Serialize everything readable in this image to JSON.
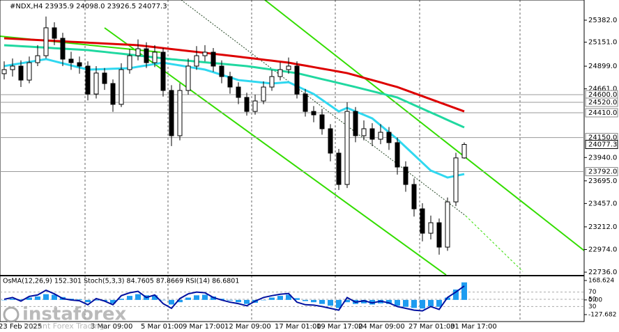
{
  "chart_data": [
    {
      "type": "candlestick",
      "title": "#NDX,H4  23935.9 24098.0 23926.5 24077.3",
      "categories": [
        null,
        "23 Feb 2025",
        null,
        null,
        null,
        null,
        null,
        null,
        null,
        null,
        null,
        null,
        "3 Mar 09:00",
        null,
        null,
        null,
        null,
        null,
        "5 Mar 01:00",
        null,
        null,
        null,
        null,
        "9 Mar 17:00",
        null,
        null,
        null,
        null,
        "12 Mar 09:00",
        null,
        null,
        null,
        null,
        null,
        "17 Mar 01:00",
        null,
        null,
        null,
        null,
        "19 Mar 17:00",
        null,
        null,
        null,
        null,
        "24 Mar 09:00",
        null,
        null,
        null,
        null,
        null,
        "27 Mar 01:00",
        null,
        null,
        null,
        null,
        "31 Mar 17:00"
      ],
      "open": [
        24820,
        24863,
        24900,
        24753,
        24936,
        25009,
        25302,
        25192,
        24973,
        24936,
        24900,
        24607,
        24827,
        24717,
        24498,
        24863,
        25009,
        25082,
        24936,
        25046,
        24644,
        24169,
        24644,
        24900,
        25009,
        25046,
        24900,
        24790,
        24680,
        24571,
        24424,
        24534,
        24680,
        24790,
        24863,
        24900,
        24607,
        24424,
        24388,
        24242,
        23986,
        23657,
        24424,
        24169,
        24242,
        24132,
        24205,
        24096,
        23840,
        23657,
        23401,
        23145,
        23255,
        22999,
        23474,
        23935.9
      ],
      "high": [
        24950,
        24980,
        24960,
        25000,
        25120,
        25420,
        25360,
        25250,
        25050,
        25000,
        24950,
        24900,
        24880,
        24760,
        24930,
        25080,
        25180,
        25150,
        25120,
        25090,
        24700,
        24720,
        24980,
        25110,
        25120,
        25090,
        24960,
        24840,
        24730,
        24620,
        24600,
        24740,
        24860,
        24940,
        24990,
        24950,
        24660,
        24480,
        24450,
        24290,
        24030,
        24520,
        24470,
        24330,
        24300,
        24290,
        24260,
        24150,
        23900,
        23720,
        23460,
        23330,
        23300,
        23520,
        23990,
        24098.0
      ],
      "low": [
        24760,
        24790,
        24680,
        24720,
        24900,
        24980,
        25120,
        24900,
        24860,
        24820,
        24540,
        24560,
        24650,
        24420,
        24470,
        24820,
        24960,
        24880,
        24890,
        24580,
        24060,
        24120,
        24600,
        24860,
        24950,
        24840,
        24720,
        24610,
        24500,
        24380,
        24390,
        24500,
        24640,
        24750,
        24820,
        24560,
        24370,
        24310,
        24180,
        23900,
        23600,
        23620,
        24100,
        24120,
        24060,
        24080,
        24020,
        23760,
        23580,
        23320,
        23060,
        23080,
        22920,
        22960,
        23430,
        23926.5
      ],
      "close": [
        24863,
        24900,
        24753,
        24936,
        25009,
        25302,
        25192,
        24973,
        24936,
        24900,
        24607,
        24827,
        24717,
        24498,
        24863,
        25009,
        25082,
        24936,
        25046,
        24644,
        24169,
        24644,
        24900,
        25009,
        25046,
        24900,
        24790,
        24680,
        24571,
        24424,
        24534,
        24680,
        24790,
        24863,
        24900,
        24607,
        24424,
        24388,
        24242,
        23986,
        23657,
        24424,
        24169,
        24242,
        24132,
        24205,
        24096,
        23840,
        23657,
        23401,
        23145,
        23255,
        22999,
        23474,
        23935.9,
        24077.3
      ],
      "series": [
        {
          "color": "#dd0000",
          "values": [
            25192,
            25187,
            25183,
            25178,
            25174,
            25169,
            25165,
            25160,
            25155,
            25151,
            25146,
            25142,
            25137,
            25133,
            25128,
            25124,
            25119,
            25109,
            25099,
            25089,
            25079,
            25069,
            25059,
            25049,
            25039,
            25029,
            25019,
            25009,
            24999,
            24988,
            24978,
            24967,
            24957,
            24946,
            24936,
            24920,
            24905,
            24889,
            24873,
            24858,
            24842,
            24826,
            24802,
            24777,
            24753,
            24729,
            24704,
            24680,
            24648,
            24616,
            24584,
            24552,
            24520,
            24488,
            24456,
            24424
          ]
        },
        {
          "color": "#20d8a0",
          "values": [
            25119,
            25114,
            25109,
            25104,
            25099,
            25094,
            25088,
            25083,
            25078,
            25073,
            25068,
            25058,
            25049,
            25039,
            25030,
            25020,
            25011,
            25001,
            24991,
            24982,
            24972,
            24964,
            24956,
            24948,
            24940,
            24932,
            24924,
            24916,
            24908,
            24900,
            24888,
            24875,
            24863,
            24851,
            24838,
            24826,
            24805,
            24784,
            24763,
            24743,
            24722,
            24701,
            24680,
            24658,
            24636,
            24614,
            24592,
            24570,
            24531,
            24491,
            24452,
            24413,
            24374,
            24334,
            24295,
            24256
          ]
        },
        {
          "color": "#30d8f0",
          "values": [
            24900,
            24915,
            24929,
            24944,
            24958,
            24973,
            24951,
            24929,
            24907,
            24885,
            24863,
            24866,
            24869,
            24872,
            24875,
            24878,
            24893,
            24907,
            24922,
            24936,
            24921,
            24907,
            24892,
            24878,
            24863,
            24836,
            24808,
            24781,
            24753,
            24744,
            24735,
            24726,
            24717,
            24724,
            24731,
            24690,
            24648,
            24607,
            24546,
            24485,
            24424,
            24461,
            24424,
            24388,
            24351,
            24278,
            24205,
            24132,
            24050,
            23968,
            23885,
            23803,
            23767,
            23730,
            23748,
            23766
          ]
        }
      ],
      "ylim": [
        22707,
        25594
      ],
      "yticks": [
        {
          "value": 25382,
          "label": "25382.0"
        },
        {
          "value": 25151,
          "label": "25151.0"
        },
        {
          "value": 24899,
          "label": "24899.0"
        },
        {
          "value": 24661,
          "label": "24661.0"
        },
        {
          "value": 23940,
          "label": "23940.0"
        },
        {
          "value": 23695,
          "label": "23695.0"
        },
        {
          "value": 23457,
          "label": "23457.0"
        },
        {
          "value": 23212,
          "label": "23212.0"
        },
        {
          "value": 22974,
          "label": "22974.0"
        },
        {
          "value": 22736,
          "label": "22736.0"
        }
      ],
      "levels": [
        {
          "value": 24600,
          "label": "24600.0"
        },
        {
          "value": 24520,
          "label": "24520.0"
        },
        {
          "value": 24410,
          "label": "24410.0"
        },
        {
          "value": 24150,
          "label": "24150.0"
        },
        {
          "value": 23792,
          "label": "23792.0"
        }
      ]
    },
    {
      "type": "oscillator",
      "title": "OsMA(12,26,9) 152.301  Stoch(5,3,3) 84.7605 87.8669  RSI(14) 86.6801",
      "ylim": [
        0,
        100
      ],
      "yticks": [
        30,
        50,
        70
      ],
      "y2lim": [
        -127.682,
        168.624
      ],
      "y2ticks": [
        168.624,
        {
          "value": 0,
          "label": "0.00"
        },
        -127.682
      ],
      "series": [
        {
          "color": "#1e9cf0",
          "axis": "y2",
          "values": [
            0,
            10,
            5,
            20,
            30,
            50,
            45,
            25,
            10,
            5,
            -20,
            -5,
            -10,
            -30,
            10,
            35,
            50,
            40,
            40,
            0,
            -40,
            -20,
            20,
            40,
            45,
            30,
            10,
            -5,
            -20,
            -35,
            -25,
            0,
            20,
            35,
            45,
            15,
            -10,
            -20,
            -35,
            -50,
            -70,
            -20,
            -35,
            -30,
            -40,
            -30,
            -35,
            -50,
            -60,
            -70,
            -75,
            -55,
            -60,
            20,
            90,
            152.301
          ]
        },
        {
          "color": "#0010a0",
          "values": [
            50,
            55,
            45,
            58,
            62,
            75,
            65,
            52,
            48,
            46,
            35,
            52,
            45,
            35,
            60,
            68,
            72,
            55,
            62,
            38,
            25,
            52,
            65,
            70,
            68,
            55,
            48,
            42,
            38,
            32,
            45,
            55,
            60,
            64,
            66,
            42,
            35,
            34,
            30,
            25,
            20,
            55,
            42,
            46,
            40,
            45,
            40,
            30,
            25,
            20,
            18,
            30,
            22,
            55,
            70,
            86.6801
          ]
        }
      ]
    }
  ],
  "watermark": {
    "brand": "instaforex",
    "tagline": "Instant Forex Trading"
  }
}
